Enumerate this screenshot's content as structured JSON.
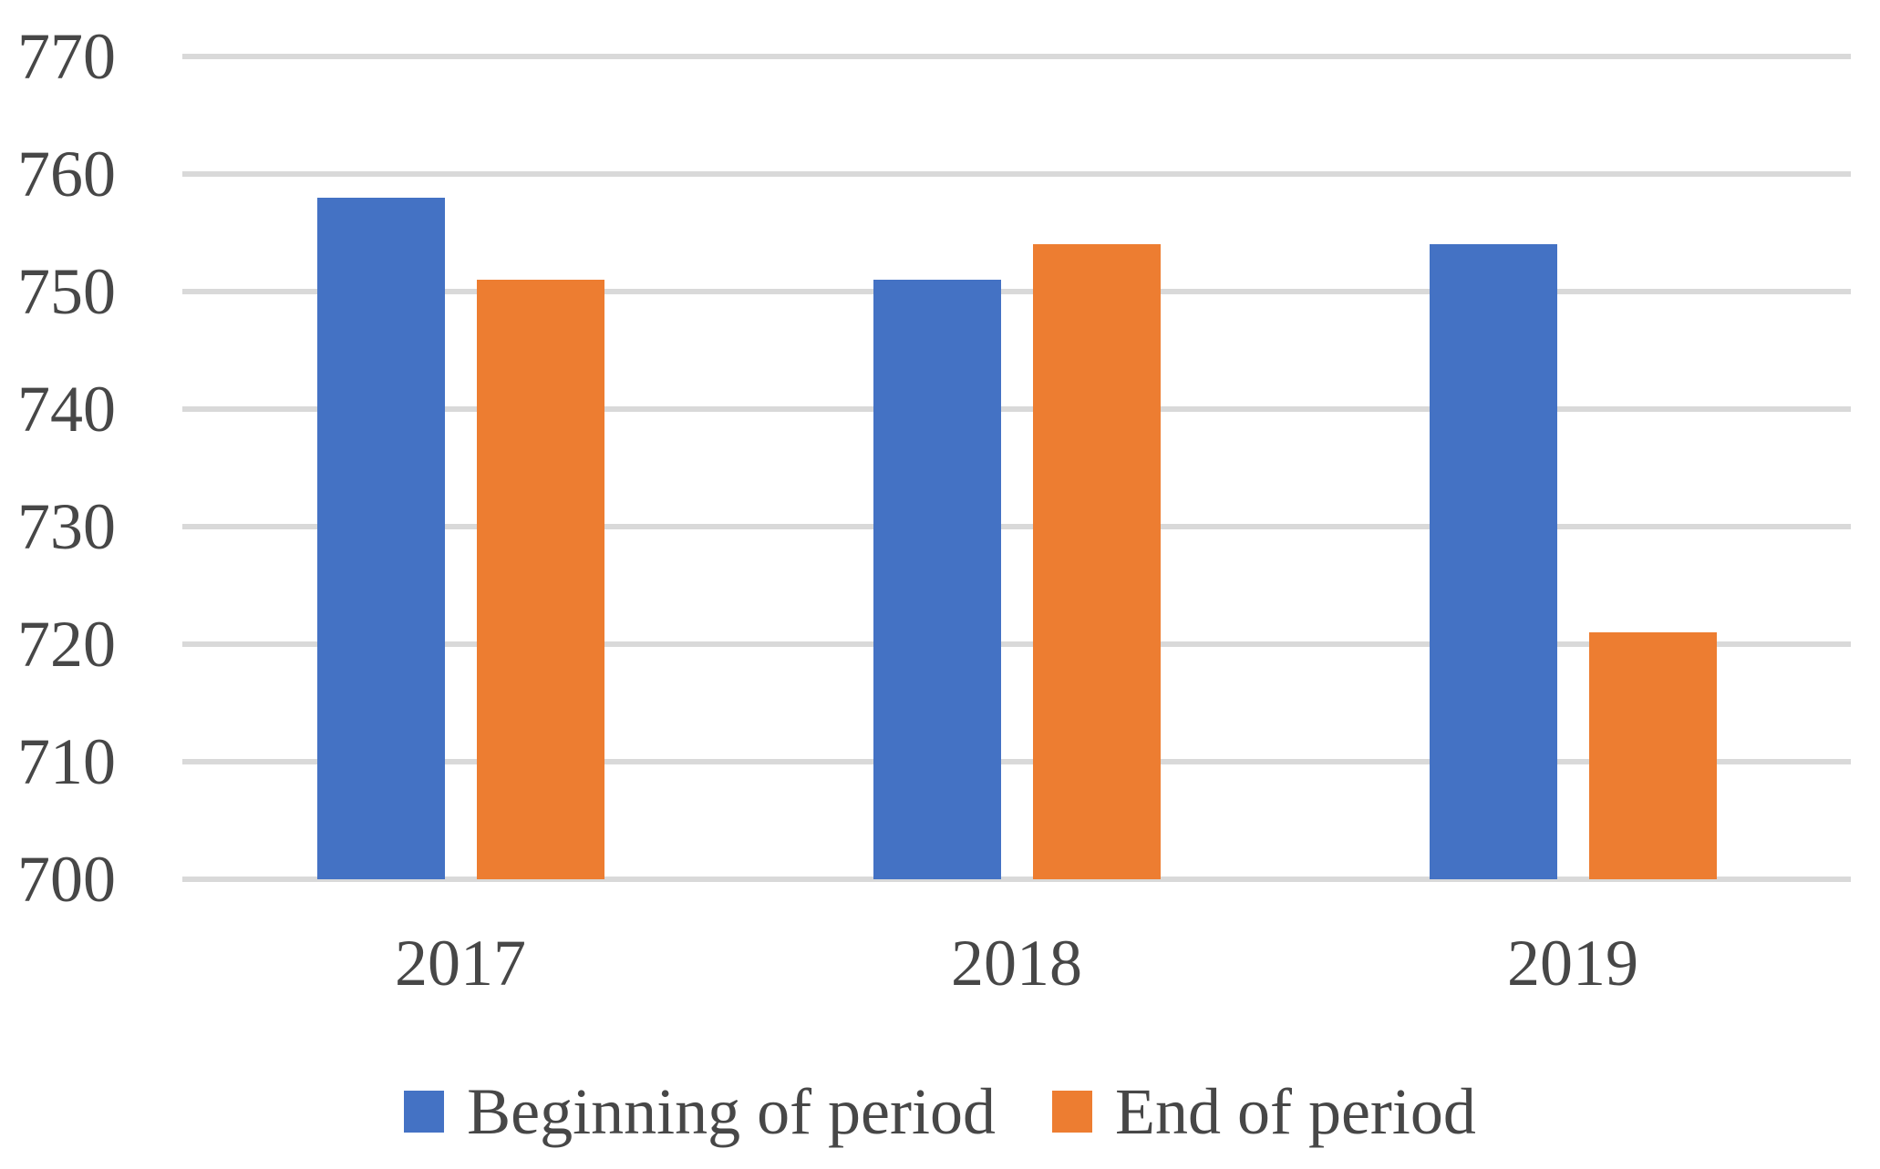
{
  "chart_data": {
    "type": "bar",
    "categories": [
      "2017",
      "2018",
      "2019"
    ],
    "series": [
      {
        "name": "Beginning of period",
        "color": "#4472C4",
        "values": [
          758,
          751,
          754
        ]
      },
      {
        "name": "End of period",
        "color": "#ED7D31",
        "values": [
          751,
          754,
          721
        ]
      }
    ],
    "yticks": [
      700,
      710,
      720,
      730,
      740,
      750,
      760,
      770
    ],
    "ylim": [
      700,
      770
    ],
    "ytick_step": 10,
    "grid": true,
    "legend_position": "bottom",
    "colors": {
      "gridline": "#D9D9D9",
      "axis_line": "#D9D9D9",
      "tick_text": "#474747",
      "background": "#FFFFFF"
    }
  }
}
